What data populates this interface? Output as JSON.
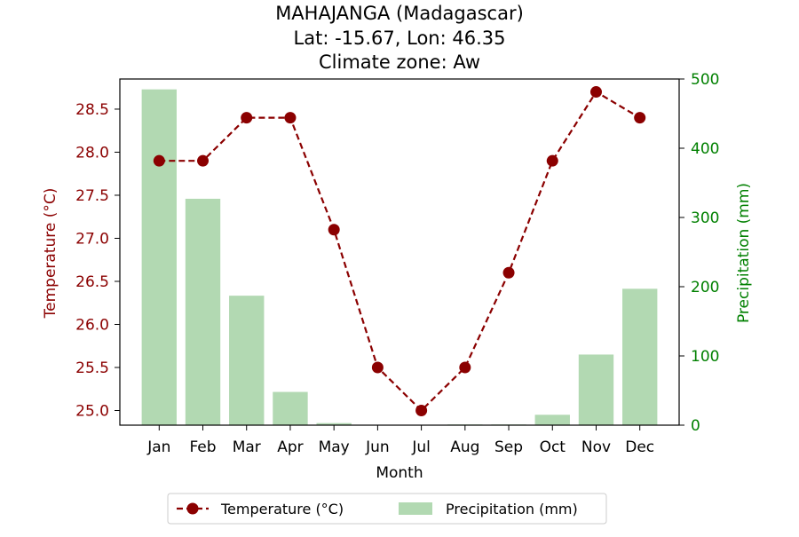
{
  "chart_data": {
    "type": "bar+line",
    "title_lines": [
      "MAHAJANGA (Madagascar)",
      "Lat: -15.67, Lon: 46.35",
      "Climate zone: Aw"
    ],
    "categories": [
      "Jan",
      "Feb",
      "Mar",
      "Apr",
      "May",
      "Jun",
      "Jul",
      "Aug",
      "Sep",
      "Oct",
      "Nov",
      "Dec"
    ],
    "xlabel": "Month",
    "ylabel_left": "Temperature (°C)",
    "ylabel_right": "Precipitation (mm)",
    "ylim_left": [
      24.83,
      28.85
    ],
    "ylim_right": [
      0,
      500
    ],
    "yticks_left": [
      "25.0",
      "25.5",
      "26.0",
      "26.5",
      "27.0",
      "27.5",
      "28.0",
      "28.5"
    ],
    "yticks_right": [
      "0",
      "100",
      "200",
      "300",
      "400",
      "500"
    ],
    "series": [
      {
        "name": "Temperature (°C)",
        "kind": "line",
        "axis": "left",
        "color": "#8b0000",
        "values": [
          27.9,
          27.9,
          28.4,
          28.4,
          27.1,
          25.5,
          25.0,
          25.5,
          26.6,
          27.9,
          28.7,
          28.4
        ]
      },
      {
        "name": "Precipitation (mm)",
        "kind": "bar",
        "axis": "right",
        "color": "#b2d9b2",
        "values": [
          485,
          327,
          187,
          48,
          3,
          0,
          0,
          1,
          1,
          15,
          102,
          197
        ]
      }
    ],
    "left_axis_color": "#8b0000",
    "right_axis_color": "#008000",
    "legend_position": "bottom-center",
    "grid": false
  }
}
